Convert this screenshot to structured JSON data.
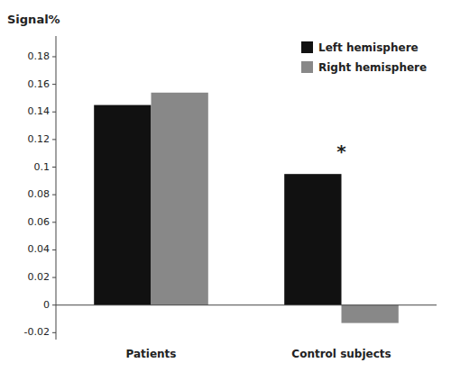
{
  "chart_data": {
    "type": "bar",
    "y_label": "Signal%",
    "categories": [
      "Patients",
      "Control subjects"
    ],
    "series": [
      {
        "name": "Left hemisphere",
        "color": "#111111",
        "values": [
          0.145,
          0.095
        ]
      },
      {
        "name": "Right hemisphere",
        "color": "#888888",
        "values": [
          0.154,
          -0.013
        ]
      }
    ],
    "ylim": [
      -0.025,
      0.195
    ],
    "yticks": [
      -0.02,
      0,
      0.02,
      0.04,
      0.06,
      0.08,
      0.1,
      0.12,
      0.14,
      0.16,
      0.18
    ],
    "annotations": [
      {
        "text": "*",
        "x": "Control subjects",
        "y": 0.107
      }
    ],
    "legend": "upper right",
    "grid": false
  }
}
